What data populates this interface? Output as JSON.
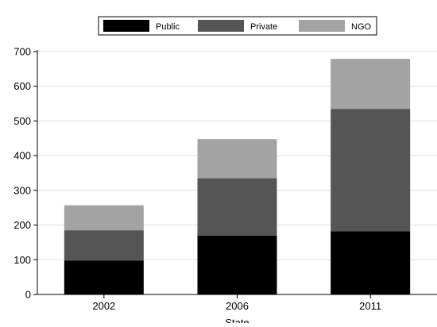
{
  "chart_data": {
    "type": "bar",
    "stacked": true,
    "categories": [
      "2002",
      "2006",
      "2011"
    ],
    "series": [
      {
        "name": "Public",
        "values": [
          98,
          170,
          182
        ]
      },
      {
        "name": "Private",
        "values": [
          87,
          165,
          353
        ]
      },
      {
        "name": "NGO",
        "values": [
          72,
          113,
          144
        ]
      }
    ],
    "xlabel": "State",
    "ylabel": "",
    "ylim": [
      0,
      700
    ],
    "yticks": [
      0,
      100,
      200,
      300,
      400,
      500,
      600,
      700
    ],
    "grid": true,
    "legend_position": "top-center",
    "colors": {
      "Public": "#000000",
      "Private": "#555555",
      "NGO": "#a3a3a3",
      "gridline": "#dddddd"
    }
  }
}
